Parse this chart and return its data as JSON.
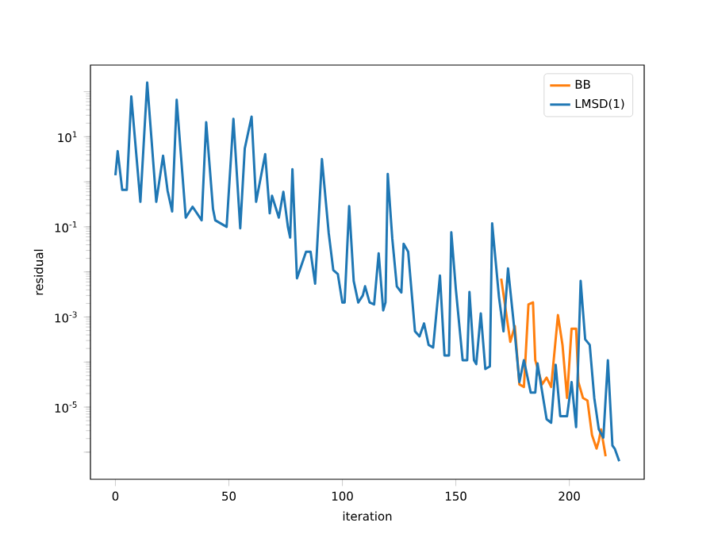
{
  "chart_data": {
    "type": "line",
    "xlabel": "iteration",
    "ylabel": "residual",
    "log": "y",
    "legend": "top right",
    "xlim": [
      -11,
      233
    ],
    "ylim": [
      2.5e-07,
      390
    ],
    "xticks": [
      0,
      50,
      100,
      150,
      200
    ],
    "yticks": [
      {
        "value": 1e-06,
        "label": null
      },
      {
        "value": 1e-05,
        "label": "10$^{-5}$"
      },
      {
        "value": 0.0001,
        "label": null
      },
      {
        "value": 0.001,
        "label": "10$^{-3}$"
      },
      {
        "value": 0.01,
        "label": null
      },
      {
        "value": 0.1,
        "label": "10$^{-1}$"
      },
      {
        "value": 1,
        "label": null
      },
      {
        "value": 10,
        "label": "10$^{1}$"
      },
      {
        "value": 100,
        "label": null
      }
    ],
    "series": [
      {
        "name": "BB",
        "color": "#ff7f0e",
        "x": [
          170,
          174,
          176,
          178,
          180,
          182,
          184,
          185,
          188,
          190,
          192,
          195,
          197,
          199,
          201,
          203,
          204,
          206,
          208,
          210,
          212,
          213,
          214,
          216
        ],
        "values": [
          0.0071,
          0.00028,
          0.00063,
          3.2e-05,
          2.8e-05,
          0.0019,
          0.0021,
          0.00011,
          3.2e-05,
          4.5e-05,
          2.8e-05,
          0.0011,
          0.00024,
          1.6e-05,
          0.00055,
          0.00055,
          3.6e-05,
          1.6e-05,
          1.4e-05,
          2.4e-06,
          1.2e-06,
          1.8e-06,
          3.2e-06,
          8.1e-07
        ]
      },
      {
        "name": "LMSD(1)",
        "color": "#1f77b4",
        "x": [
          0,
          1,
          3,
          5,
          7,
          11,
          14,
          18,
          21,
          23,
          25,
          27,
          31,
          34,
          38,
          40,
          43,
          44,
          49,
          52,
          55,
          57,
          60,
          62,
          66,
          68,
          69,
          72,
          74,
          76,
          77,
          78,
          80,
          84,
          86,
          88,
          91,
          94,
          96,
          98,
          100,
          101,
          103,
          105,
          107,
          109,
          110,
          112,
          114,
          116,
          118,
          119,
          120,
          122,
          124,
          126,
          127,
          129,
          132,
          134,
          136,
          138,
          140,
          143,
          145,
          147,
          148,
          150,
          153,
          155,
          156,
          158,
          159,
          161,
          163,
          165,
          166,
          169,
          171,
          173,
          176,
          178,
          180,
          183,
          185,
          186,
          190,
          192,
          194,
          196,
          199,
          201,
          203,
          205,
          207,
          209,
          211,
          213,
          215,
          217,
          219,
          220,
          222
        ],
        "values": [
          1.4,
          4.8,
          0.66,
          0.66,
          79,
          0.36,
          160,
          0.36,
          3.8,
          0.63,
          0.22,
          66,
          0.16,
          0.28,
          0.14,
          21,
          0.25,
          0.14,
          0.1,
          25,
          0.093,
          5.5,
          28,
          0.36,
          4.1,
          0.2,
          0.49,
          0.16,
          0.6,
          0.1,
          0.058,
          1.9,
          0.0072,
          0.028,
          0.028,
          0.0055,
          3.2,
          0.072,
          0.011,
          0.009,
          0.0021,
          0.0021,
          0.29,
          0.0063,
          0.0021,
          0.003,
          0.0048,
          0.0021,
          0.0019,
          0.026,
          0.0014,
          0.0021,
          1.5,
          0.055,
          0.0048,
          0.0035,
          0.042,
          0.028,
          0.00048,
          0.00037,
          0.00072,
          0.00024,
          0.00021,
          0.0083,
          0.00014,
          0.00014,
          0.076,
          0.0042,
          0.00011,
          0.00011,
          0.0036,
          0.00011,
          9e-05,
          0.0012,
          7e-05,
          8e-05,
          0.12,
          0.0028,
          0.00048,
          0.012,
          0.00042,
          3.6e-05,
          0.00011,
          2.1e-05,
          2.1e-05,
          9.3e-05,
          5.4e-06,
          4.5e-06,
          8.7e-05,
          6.3e-06,
          6.3e-06,
          3.6e-05,
          3.6e-06,
          0.0063,
          0.00032,
          0.00024,
          1.6e-05,
          3.2e-06,
          2.1e-06,
          0.00011,
          1.4e-06,
          1.2e-06,
          6.3e-07
        ]
      }
    ]
  }
}
